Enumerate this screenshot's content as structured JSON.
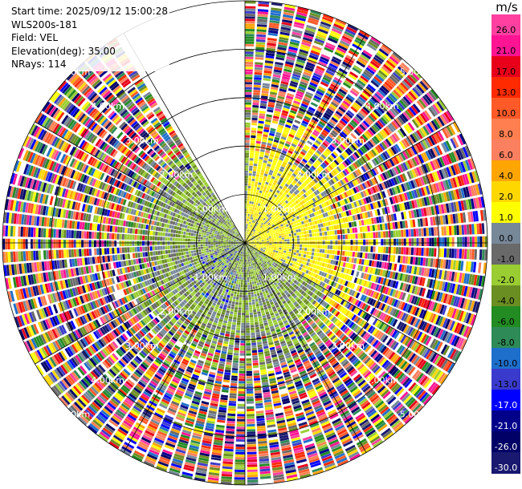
{
  "info": {
    "start_time": "Start time: 2025/09/12 15:00:28",
    "instrument": "WLS200s-181",
    "field": "Field: VEL",
    "elevation": "Elevation(deg): 35.00",
    "nrays": "NRays: 114"
  },
  "chart_data": {
    "type": "heatmap",
    "projection": "polar PPI",
    "field": "VEL",
    "units": "m/s",
    "nrays": 114,
    "elevation_deg": 35.0,
    "range_rings_km": [
      1.0,
      2.0,
      3.0,
      4.0,
      5.0
    ],
    "range_ring_labels": [
      "1.00km",
      "2.00km",
      "3.00km",
      "4.00km",
      "5.00km"
    ],
    "range_max_km": 5.0,
    "azimuth_spokes_deg": [
      0,
      30,
      60,
      90,
      120,
      150,
      180,
      210,
      240,
      270,
      300,
      330
    ],
    "missing_sector_deg": [
      326,
      360
    ],
    "colorbar": {
      "unit_label": "m/s",
      "tick_labels": [
        "26.0",
        "21.0",
        "17.0",
        "13.0",
        "10.0",
        "8.0",
        "6.0",
        "4.0",
        "2.0",
        "1.0",
        "0.0",
        "-1.0",
        "-2.0",
        "-4.0",
        "-6.0",
        "-8.0",
        "-10.0",
        "-13.0",
        "-17.0",
        "-21.0",
        "-26.0",
        "-30.0"
      ],
      "colors": [
        "#ff40a0",
        "#ff1493",
        "#e8001a",
        "#ff2a00",
        "#ff5a28",
        "#ff7f50",
        "#fa8060",
        "#ffa500",
        "#ffd700",
        "#ffff00",
        "#778899",
        "#696969",
        "#9acd32",
        "#6b8e23",
        "#228b22",
        "#2e8b57",
        "#1e6fcc",
        "#3a3acc",
        "#0000ff",
        "#00008b",
        "#000066",
        "#191970"
      ]
    }
  }
}
